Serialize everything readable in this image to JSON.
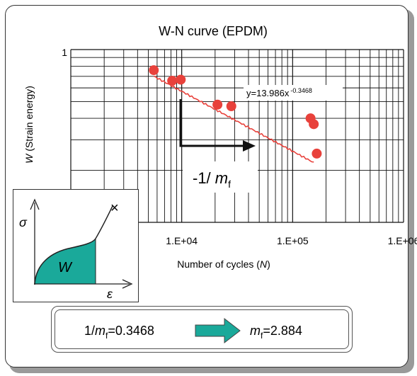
{
  "chart_data": {
    "type": "scatter",
    "title": "W-N curve (EPDM)",
    "xlabel": {
      "pre": "Number of cycles (",
      "italic": "N",
      "post": ")"
    },
    "ylabel": {
      "italic": "W",
      "post": " (Strain energy)"
    },
    "x_scale": "log",
    "y_scale": "log",
    "xlim": [
      1000,
      1000000
    ],
    "ylim": [
      0.1,
      1
    ],
    "y_top_tick": "1",
    "x_tick_labels": [
      {
        "value": 10000,
        "label": "1.E+04"
      },
      {
        "value": 100000,
        "label": "1.E+05"
      },
      {
        "value": 1000000,
        "label": "1.E+06"
      }
    ],
    "grid": true,
    "series": [
      {
        "values": [
          {
            "x": 5600,
            "y": 0.76
          },
          {
            "x": 8200,
            "y": 0.66
          },
          {
            "x": 9800,
            "y": 0.67
          },
          {
            "x": 21000,
            "y": 0.48
          },
          {
            "x": 28000,
            "y": 0.47
          },
          {
            "x": 145000,
            "y": 0.4
          },
          {
            "x": 155000,
            "y": 0.37
          },
          {
            "x": 165000,
            "y": 0.25
          }
        ],
        "color": "#e8413b"
      }
    ],
    "trendline": {
      "equation": "y=13.986x",
      "exponent": "-0.3468",
      "a": 13.986,
      "b": -0.3468,
      "x_range": [
        5600,
        155000
      ],
      "color": "#e8413b"
    },
    "slope_annotation": {
      "pre": "-1/ ",
      "italic": "m",
      "sub": "f"
    }
  },
  "inset": {
    "y_label": "σ",
    "x_label": "ε",
    "area_label": "W",
    "end_mark": "×",
    "fill_color": "#1aa99a"
  },
  "formula": {
    "left_pre": "1/",
    "left_italic": "m",
    "left_sub": "f",
    "left_post": "=0.3468",
    "right_italic": "m",
    "right_sub": "f",
    "right_post": "=2.884",
    "arrow_color": "#1aa99a"
  }
}
